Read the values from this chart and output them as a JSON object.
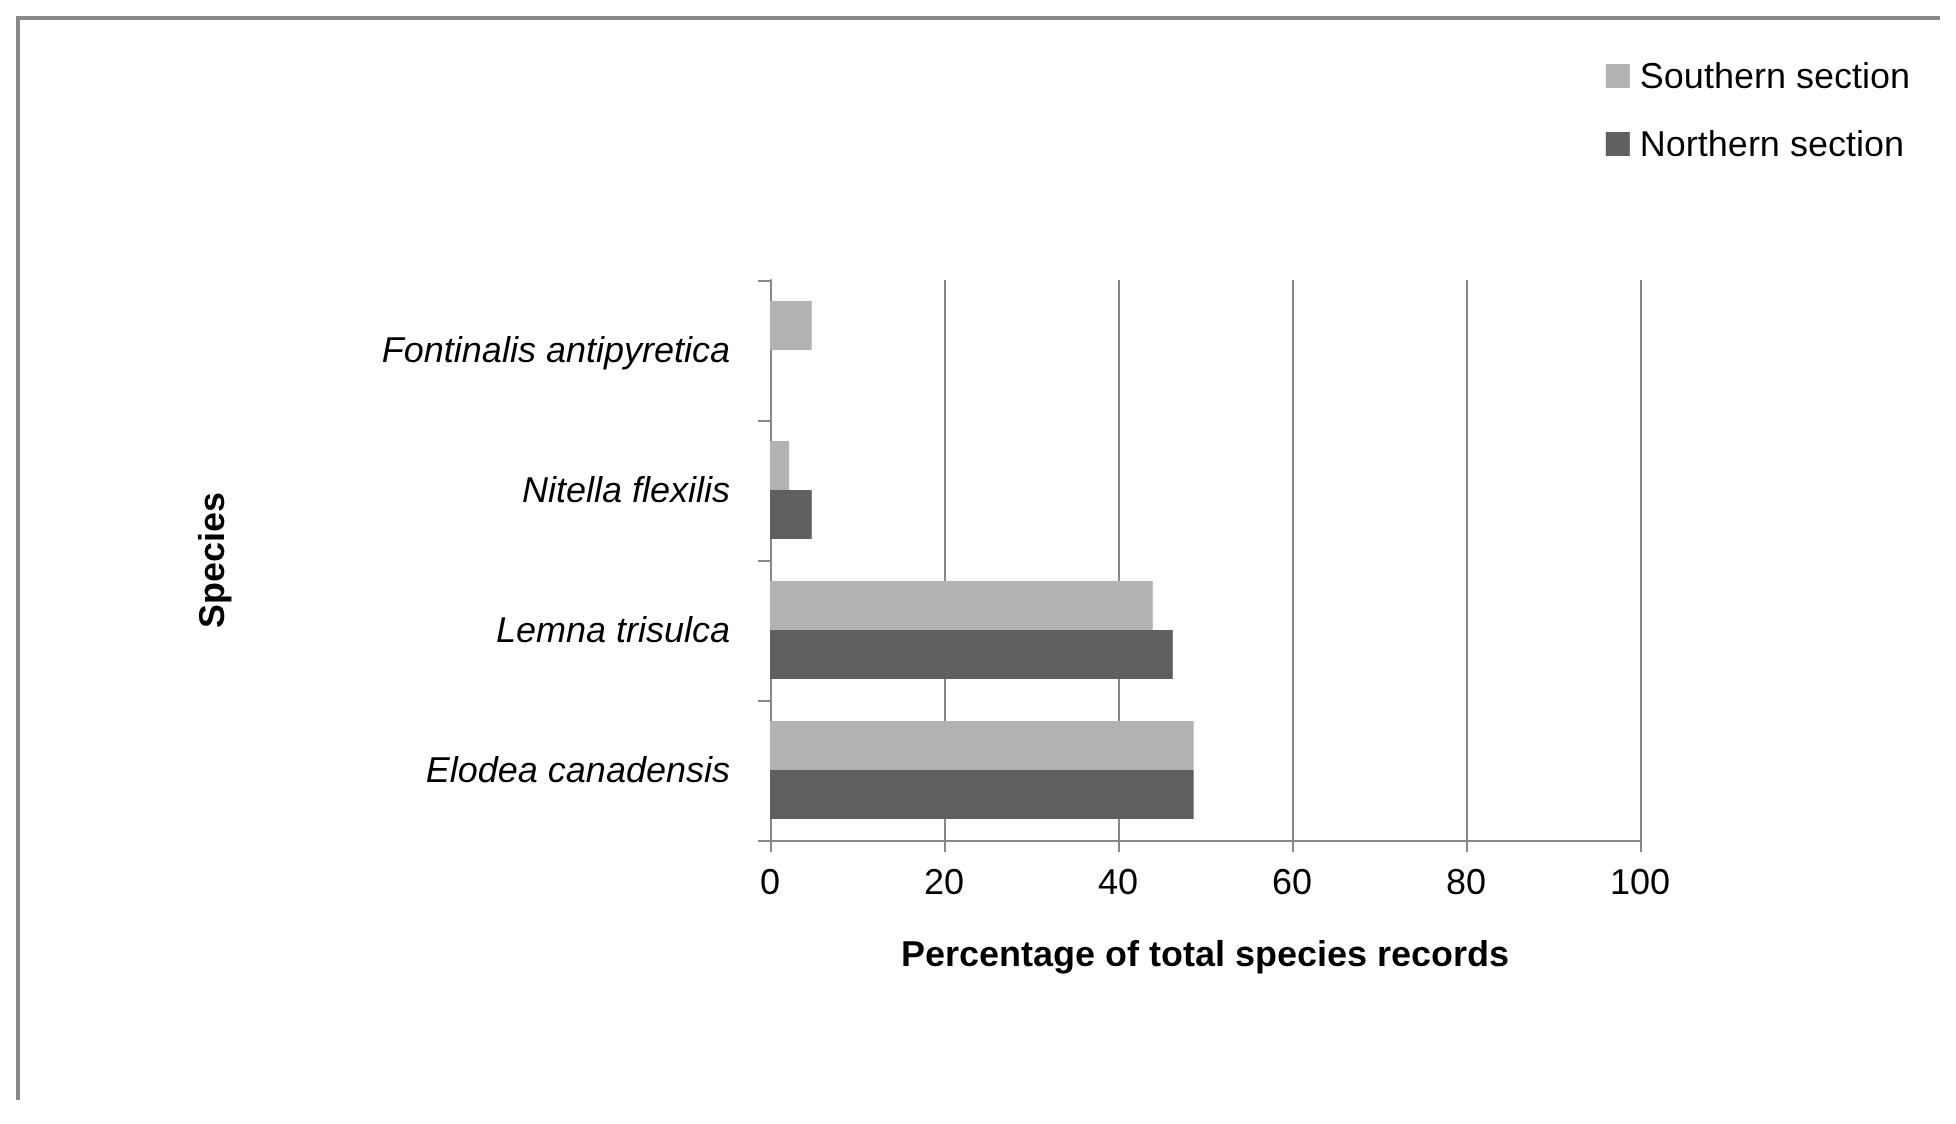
{
  "chart_data": {
    "type": "bar",
    "orientation": "horizontal",
    "xlabel": "Percentage of total species records",
    "ylabel": "Species",
    "categories": [
      "Fontinalis antipyretica",
      "Nitella flexilis",
      "Lemna trisulca",
      "Elodea canadensis"
    ],
    "series": [
      {
        "name": "Southern section",
        "color": "#b2b2b2",
        "values": [
          4.8,
          2.2,
          44.0,
          48.7
        ]
      },
      {
        "name": "Northern section",
        "color": "#606060",
        "values": [
          null,
          4.8,
          46.3,
          48.7
        ]
      }
    ],
    "xlim": [
      0,
      100
    ],
    "xticks": [
      0,
      20,
      40,
      60,
      80,
      100
    ],
    "grid": "x",
    "legend": "top right"
  }
}
